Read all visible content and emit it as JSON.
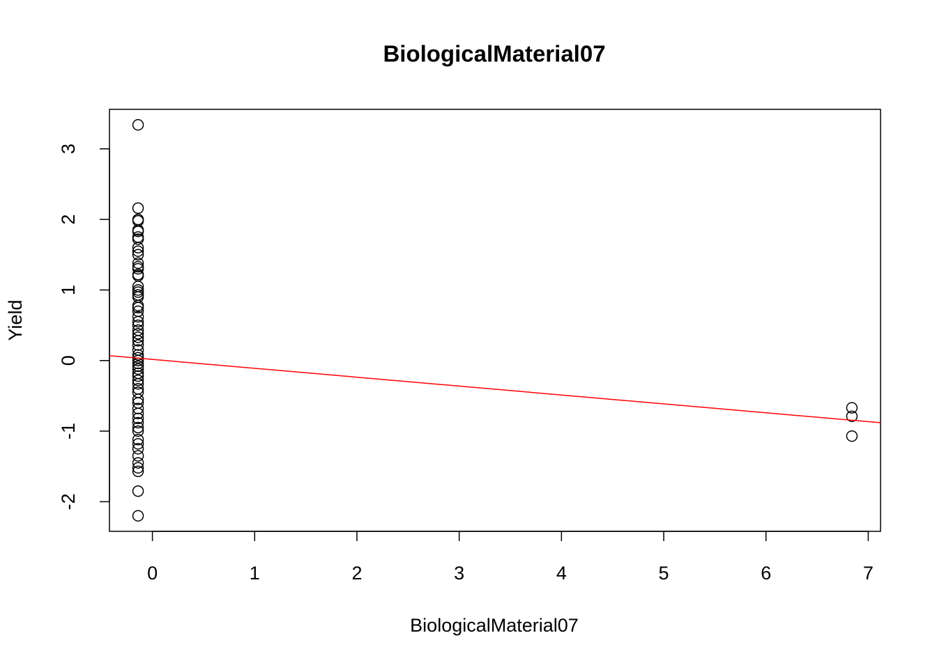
{
  "chart_data": {
    "type": "scatter",
    "title": "BiologicalMaterial07",
    "x_label": "BiologicalMaterial07",
    "y_label": "Yield",
    "series": [
      {
        "color": "#000000",
        "x": [
          -0.14,
          -0.14,
          -0.14,
          -0.14,
          -0.14,
          -0.14,
          -0.14,
          -0.14,
          -0.14,
          -0.14,
          -0.14,
          -0.14,
          -0.14,
          -0.14,
          -0.14,
          -0.14,
          -0.14,
          -0.14,
          -0.14,
          -0.14,
          -0.14,
          -0.14,
          -0.14,
          -0.14,
          -0.14,
          -0.14,
          -0.14,
          -0.14,
          -0.14,
          -0.14,
          -0.14,
          -0.14,
          -0.14,
          -0.14,
          -0.14,
          -0.14,
          -0.14,
          -0.14,
          -0.14,
          -0.14,
          -0.14,
          -0.14,
          -0.14,
          -0.14,
          -0.14,
          -0.14,
          -0.14,
          -0.14,
          -0.14,
          -0.14,
          -0.14,
          -0.14,
          -0.14,
          -0.14,
          -0.14,
          -0.14,
          -0.14,
          -0.14,
          -0.14,
          -0.14,
          -0.14,
          -0.14,
          6.84,
          6.84,
          6.84
        ],
        "values": [
          3.34,
          2.16,
          2.0,
          1.98,
          1.85,
          1.83,
          1.75,
          1.72,
          1.6,
          1.55,
          1.5,
          1.38,
          1.33,
          1.3,
          1.22,
          1.2,
          1.05,
          1.0,
          0.97,
          0.93,
          0.9,
          0.78,
          0.75,
          0.7,
          0.62,
          0.55,
          0.5,
          0.43,
          0.38,
          0.33,
          0.28,
          0.22,
          0.15,
          0.08,
          0.04,
          0.0,
          -0.04,
          -0.08,
          -0.12,
          -0.18,
          -0.22,
          -0.28,
          -0.33,
          -0.4,
          -0.45,
          -0.55,
          -0.6,
          -0.68,
          -0.75,
          -0.82,
          -0.88,
          -0.95,
          -1.0,
          -1.12,
          -1.18,
          -1.25,
          -1.35,
          -1.45,
          -1.52,
          -1.57,
          -1.85,
          -2.2,
          -0.67,
          -0.79,
          -1.07
        ]
      }
    ],
    "fit_line": {
      "intercept": 0.016,
      "slope": -0.126,
      "color": "#ff0000"
    },
    "xlim": [
      -0.42,
      7.12
    ],
    "ylim": [
      -2.42,
      3.56
    ],
    "xticks": [
      0,
      1,
      2,
      3,
      4,
      5,
      6,
      7
    ],
    "yticks": [
      -2,
      -1,
      0,
      1,
      2,
      3
    ]
  }
}
